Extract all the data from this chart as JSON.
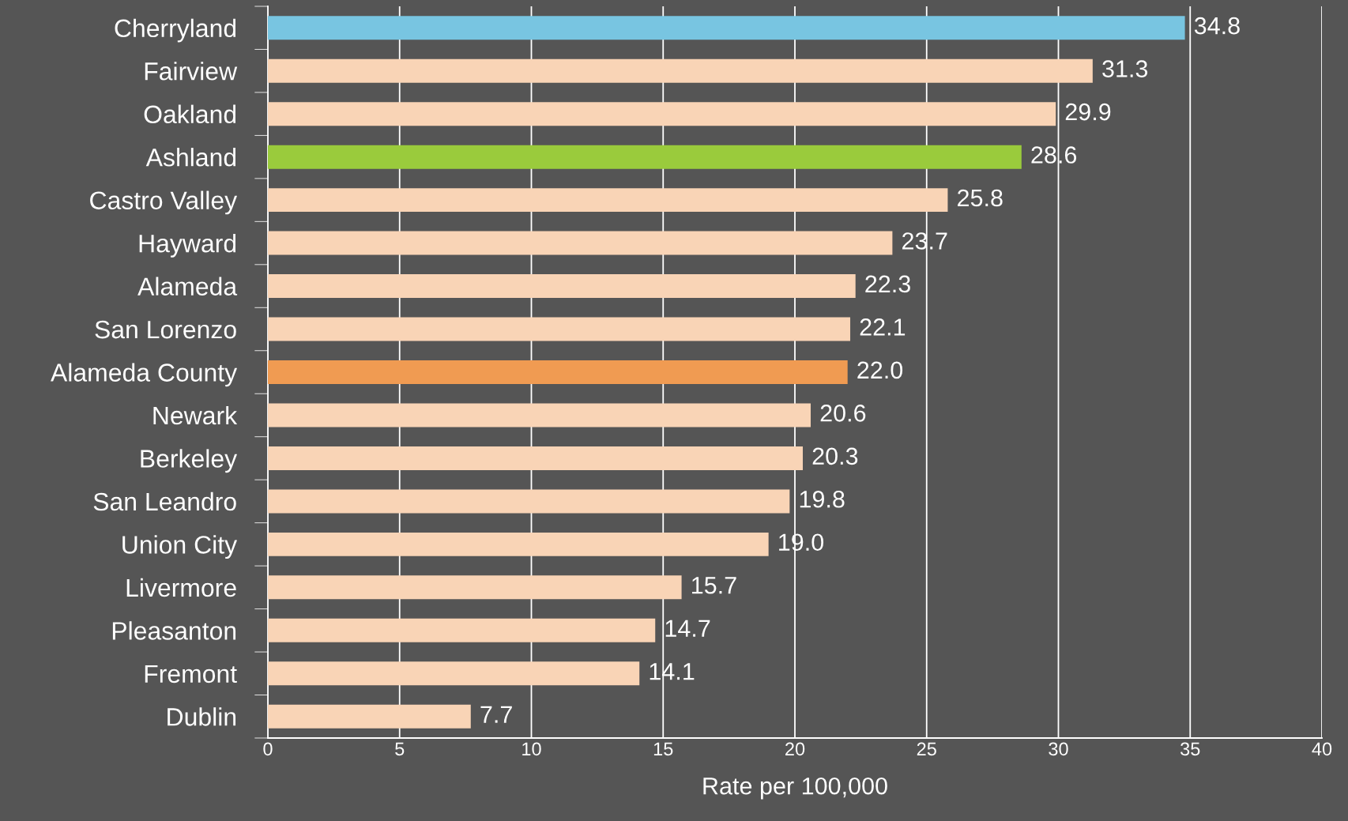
{
  "chart_data": {
    "type": "bar",
    "orientation": "horizontal",
    "xlabel": "Rate per 100,000",
    "categories": [
      "Cherryland",
      "Fairview",
      "Oakland",
      "Ashland",
      "Castro Valley",
      "Hayward",
      "Alameda",
      "San Lorenzo",
      "Alameda County",
      "Newark",
      "Berkeley",
      "San Leandro",
      "Union City",
      "Livermore",
      "Pleasanton",
      "Fremont",
      "Dublin"
    ],
    "values": [
      34.8,
      31.3,
      29.9,
      28.6,
      25.8,
      23.7,
      22.3,
      22.1,
      22.0,
      20.6,
      20.3,
      19.8,
      19.0,
      15.7,
      14.7,
      14.1,
      7.7
    ],
    "value_labels": [
      "34.8",
      "31.3",
      "29.9",
      "28.6",
      "25.8",
      "23.7",
      "22.3",
      "22.1",
      "22.0",
      "20.6",
      "20.3",
      "19.8",
      "19.0",
      "15.7",
      "14.7",
      "14.1",
      "7.7"
    ],
    "colors": [
      "#78c5e1",
      "#f9d4b6",
      "#f9d4b6",
      "#9acb3c",
      "#f9d4b6",
      "#f9d4b6",
      "#f9d4b6",
      "#f9d4b6",
      "#f09b52",
      "#f9d4b6",
      "#f9d4b6",
      "#f9d4b6",
      "#f9d4b6",
      "#f9d4b6",
      "#f9d4b6",
      "#f9d4b6",
      "#f9d4b6"
    ],
    "xlim": [
      0,
      40
    ],
    "xticks": [
      0,
      5,
      10,
      15,
      20,
      25,
      30,
      35,
      40
    ],
    "grid": "x"
  }
}
